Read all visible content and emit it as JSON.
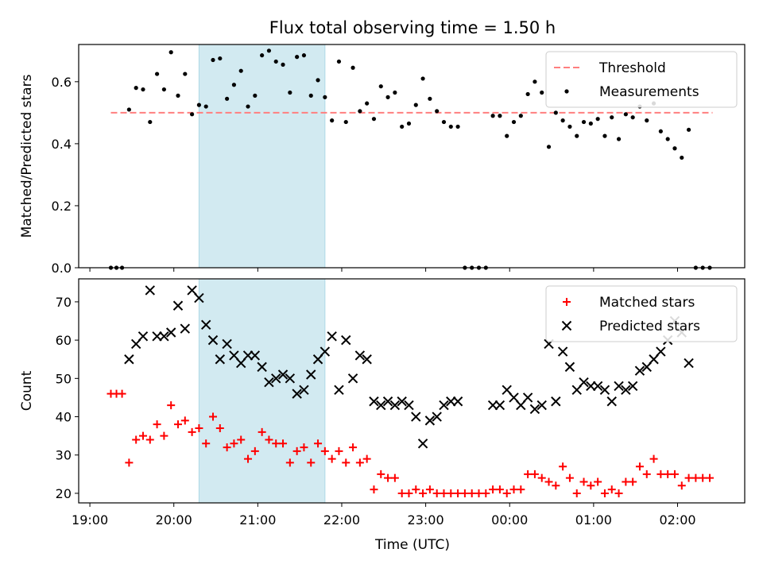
{
  "title": "Flux total observing time = 1.50 h",
  "xlabel": "Time (UTC)",
  "colors": {
    "threshold": "#ff7f7f",
    "measurement": "#000000",
    "matched": "#ff0000",
    "predicted": "#000000",
    "observing_window": "#add8e6"
  },
  "chart_data": [
    {
      "type": "scatter",
      "panel": "top",
      "ylabel": "Matched/Predicted stars",
      "ylim": [
        0,
        0.72
      ],
      "yticks": [
        0.0,
        0.2,
        0.4,
        0.6
      ],
      "xlim": [
        "18:52",
        "02:48"
      ],
      "legend": "top-right",
      "grid": false,
      "shaded_window": [
        "20:18",
        "21:48"
      ],
      "threshold": {
        "name": "Threshold",
        "value": 0.5,
        "x": [
          "19:15",
          "02:25"
        ]
      },
      "series": [
        {
          "name": "Measurements",
          "points": [
            [
              "19:15",
              0
            ],
            [
              "19:19",
              0
            ],
            [
              "19:23",
              0
            ],
            [
              "19:28",
              0.51
            ],
            [
              "19:33",
              0.58
            ],
            [
              "19:38",
              0.575
            ],
            [
              "19:43",
              0.47
            ],
            [
              "19:48",
              0.625
            ],
            [
              "19:53",
              0.575
            ],
            [
              "19:58",
              0.695
            ],
            [
              "20:03",
              0.555
            ],
            [
              "20:08",
              0.625
            ],
            [
              "20:13",
              0.495
            ],
            [
              "20:18",
              0.525
            ],
            [
              "20:23",
              0.52
            ],
            [
              "20:28",
              0.67
            ],
            [
              "20:33",
              0.675
            ],
            [
              "20:38",
              0.545
            ],
            [
              "20:43",
              0.59
            ],
            [
              "20:48",
              0.635
            ],
            [
              "20:53",
              0.52
            ],
            [
              "20:58",
              0.555
            ],
            [
              "21:03",
              0.685
            ],
            [
              "21:08",
              0.7
            ],
            [
              "21:13",
              0.665
            ],
            [
              "21:18",
              0.655
            ],
            [
              "21:23",
              0.565
            ],
            [
              "21:28",
              0.68
            ],
            [
              "21:33",
              0.685
            ],
            [
              "21:38",
              0.555
            ],
            [
              "21:43",
              0.605
            ],
            [
              "21:48",
              0.55
            ],
            [
              "21:53",
              0.475
            ],
            [
              "21:58",
              0.665
            ],
            [
              "22:03",
              0.47
            ],
            [
              "22:08",
              0.645
            ],
            [
              "22:13",
              0.505
            ],
            [
              "22:18",
              0.53
            ],
            [
              "22:23",
              0.48
            ],
            [
              "22:28",
              0.585
            ],
            [
              "22:33",
              0.55
            ],
            [
              "22:38",
              0.565
            ],
            [
              "22:43",
              0.455
            ],
            [
              "22:48",
              0.465
            ],
            [
              "22:53",
              0.525
            ],
            [
              "22:58",
              0.61
            ],
            [
              "23:03",
              0.545
            ],
            [
              "23:08",
              0.505
            ],
            [
              "23:13",
              0.47
            ],
            [
              "23:18",
              0.455
            ],
            [
              "23:23",
              0.455
            ],
            [
              "23:28",
              0
            ],
            [
              "23:33",
              0
            ],
            [
              "23:38",
              0
            ],
            [
              "23:43",
              0
            ],
            [
              "23:48",
              0.49
            ],
            [
              "23:53",
              0.49
            ],
            [
              "23:58",
              0.425
            ],
            [
              "00:03",
              0.47
            ],
            [
              "00:08",
              0.49
            ],
            [
              "00:13",
              0.56
            ],
            [
              "00:18",
              0.6
            ],
            [
              "00:23",
              0.565
            ],
            [
              "00:28",
              0.39
            ],
            [
              "00:33",
              0.5
            ],
            [
              "00:38",
              0.475
            ],
            [
              "00:43",
              0.455
            ],
            [
              "00:48",
              0.425
            ],
            [
              "00:53",
              0.47
            ],
            [
              "00:58",
              0.465
            ],
            [
              "01:03",
              0.48
            ],
            [
              "01:08",
              0.425
            ],
            [
              "01:13",
              0.485
            ],
            [
              "01:18",
              0.415
            ],
            [
              "01:23",
              0.495
            ],
            [
              "01:28",
              0.485
            ],
            [
              "01:33",
              0.52
            ],
            [
              "01:38",
              0.475
            ],
            [
              "01:43",
              0.53
            ],
            [
              "01:48",
              0.44
            ],
            [
              "01:53",
              0.415
            ],
            [
              "01:58",
              0.385
            ],
            [
              "02:03",
              0.355
            ],
            [
              "02:08",
              0.445
            ],
            [
              "02:13",
              0
            ],
            [
              "02:18",
              0
            ],
            [
              "02:23",
              0
            ]
          ]
        }
      ]
    },
    {
      "type": "scatter",
      "panel": "bottom",
      "ylabel": "Count",
      "ylim": [
        17.5,
        76
      ],
      "yticks": [
        20,
        30,
        40,
        50,
        60,
        70
      ],
      "xlim": [
        "18:52",
        "02:48"
      ],
      "xticks": [
        "19:00",
        "20:00",
        "21:00",
        "22:00",
        "23:00",
        "00:00",
        "01:00",
        "02:00"
      ],
      "legend": "top-right",
      "grid": false,
      "shaded_window": [
        "20:18",
        "21:48"
      ],
      "series": [
        {
          "name": "Matched stars",
          "marker": "plus",
          "points": [
            [
              "19:15",
              46
            ],
            [
              "19:19",
              46
            ],
            [
              "19:23",
              46
            ],
            [
              "19:28",
              28
            ],
            [
              "19:33",
              34
            ],
            [
              "19:38",
              35
            ],
            [
              "19:43",
              34
            ],
            [
              "19:48",
              38
            ],
            [
              "19:53",
              35
            ],
            [
              "19:58",
              43
            ],
            [
              "20:03",
              38
            ],
            [
              "20:08",
              39
            ],
            [
              "20:13",
              36
            ],
            [
              "20:18",
              37
            ],
            [
              "20:23",
              33
            ],
            [
              "20:28",
              40
            ],
            [
              "20:33",
              37
            ],
            [
              "20:38",
              32
            ],
            [
              "20:43",
              33
            ],
            [
              "20:48",
              34
            ],
            [
              "20:53",
              29
            ],
            [
              "20:58",
              31
            ],
            [
              "21:03",
              36
            ],
            [
              "21:08",
              34
            ],
            [
              "21:13",
              33
            ],
            [
              "21:18",
              33
            ],
            [
              "21:23",
              28
            ],
            [
              "21:28",
              31
            ],
            [
              "21:33",
              32
            ],
            [
              "21:38",
              28
            ],
            [
              "21:43",
              33
            ],
            [
              "21:48",
              31
            ],
            [
              "21:53",
              29
            ],
            [
              "21:58",
              31
            ],
            [
              "22:03",
              28
            ],
            [
              "22:08",
              32
            ],
            [
              "22:13",
              28
            ],
            [
              "22:18",
              29
            ],
            [
              "22:23",
              21
            ],
            [
              "22:28",
              25
            ],
            [
              "22:33",
              24
            ],
            [
              "22:38",
              24
            ],
            [
              "22:43",
              20
            ],
            [
              "22:48",
              20
            ],
            [
              "22:53",
              21
            ],
            [
              "22:58",
              20
            ],
            [
              "23:03",
              21
            ],
            [
              "23:08",
              20
            ],
            [
              "23:13",
              20
            ],
            [
              "23:18",
              20
            ],
            [
              "23:23",
              20
            ],
            [
              "23:28",
              20
            ],
            [
              "23:33",
              20
            ],
            [
              "23:38",
              20
            ],
            [
              "23:43",
              20
            ],
            [
              "23:48",
              21
            ],
            [
              "23:53",
              21
            ],
            [
              "23:58",
              20
            ],
            [
              "00:03",
              21
            ],
            [
              "00:08",
              21
            ],
            [
              "00:13",
              25
            ],
            [
              "00:18",
              25
            ],
            [
              "00:23",
              24
            ],
            [
              "00:28",
              23
            ],
            [
              "00:33",
              22
            ],
            [
              "00:38",
              27
            ],
            [
              "00:43",
              24
            ],
            [
              "00:48",
              20
            ],
            [
              "00:53",
              23
            ],
            [
              "00:58",
              22
            ],
            [
              "01:03",
              23
            ],
            [
              "01:08",
              20
            ],
            [
              "01:13",
              21
            ],
            [
              "01:18",
              20
            ],
            [
              "01:23",
              23
            ],
            [
              "01:28",
              23
            ],
            [
              "01:33",
              27
            ],
            [
              "01:38",
              25
            ],
            [
              "01:43",
              29
            ],
            [
              "01:48",
              25
            ],
            [
              "01:53",
              25
            ],
            [
              "01:58",
              25
            ],
            [
              "02:03",
              22
            ],
            [
              "02:08",
              24
            ],
            [
              "02:13",
              24
            ],
            [
              "02:18",
              24
            ],
            [
              "02:23",
              24
            ]
          ]
        },
        {
          "name": "Predicted stars",
          "marker": "x",
          "points": [
            [
              "19:28",
              55
            ],
            [
              "19:33",
              59
            ],
            [
              "19:38",
              61
            ],
            [
              "19:43",
              73
            ],
            [
              "19:48",
              61
            ],
            [
              "19:53",
              61
            ],
            [
              "19:58",
              62
            ],
            [
              "20:03",
              69
            ],
            [
              "20:08",
              63
            ],
            [
              "20:13",
              73
            ],
            [
              "20:18",
              71
            ],
            [
              "20:23",
              64
            ],
            [
              "20:28",
              60
            ],
            [
              "20:33",
              55
            ],
            [
              "20:38",
              59
            ],
            [
              "20:43",
              56
            ],
            [
              "20:48",
              54
            ],
            [
              "20:53",
              56
            ],
            [
              "20:58",
              56
            ],
            [
              "21:03",
              53
            ],
            [
              "21:08",
              49
            ],
            [
              "21:13",
              50
            ],
            [
              "21:18",
              51
            ],
            [
              "21:23",
              50
            ],
            [
              "21:28",
              46
            ],
            [
              "21:33",
              47
            ],
            [
              "21:38",
              51
            ],
            [
              "21:43",
              55
            ],
            [
              "21:48",
              57
            ],
            [
              "21:53",
              61
            ],
            [
              "21:58",
              47
            ],
            [
              "22:03",
              60
            ],
            [
              "22:08",
              50
            ],
            [
              "22:13",
              56
            ],
            [
              "22:18",
              55
            ],
            [
              "22:23",
              44
            ],
            [
              "22:28",
              43
            ],
            [
              "22:33",
              44
            ],
            [
              "22:38",
              43
            ],
            [
              "22:43",
              44
            ],
            [
              "22:48",
              43
            ],
            [
              "22:53",
              40
            ],
            [
              "22:58",
              33
            ],
            [
              "23:03",
              39
            ],
            [
              "23:08",
              40
            ],
            [
              "23:13",
              43
            ],
            [
              "23:18",
              44
            ],
            [
              "23:23",
              44
            ],
            [
              "23:48",
              43
            ],
            [
              "23:53",
              43
            ],
            [
              "23:58",
              47
            ],
            [
              "00:03",
              45
            ],
            [
              "00:08",
              43
            ],
            [
              "00:13",
              45
            ],
            [
              "00:18",
              42
            ],
            [
              "00:23",
              43
            ],
            [
              "00:28",
              59
            ],
            [
              "00:33",
              44
            ],
            [
              "00:38",
              57
            ],
            [
              "00:43",
              53
            ],
            [
              "00:48",
              47
            ],
            [
              "00:53",
              49
            ],
            [
              "00:58",
              48
            ],
            [
              "01:03",
              48
            ],
            [
              "01:08",
              47
            ],
            [
              "01:13",
              44
            ],
            [
              "01:18",
              48
            ],
            [
              "01:23",
              47
            ],
            [
              "01:28",
              48
            ],
            [
              "01:33",
              52
            ],
            [
              "01:38",
              53
            ],
            [
              "01:43",
              55
            ],
            [
              "01:48",
              57
            ],
            [
              "01:53",
              60
            ],
            [
              "01:58",
              65
            ],
            [
              "02:03",
              62
            ],
            [
              "02:08",
              54
            ]
          ]
        }
      ]
    }
  ]
}
